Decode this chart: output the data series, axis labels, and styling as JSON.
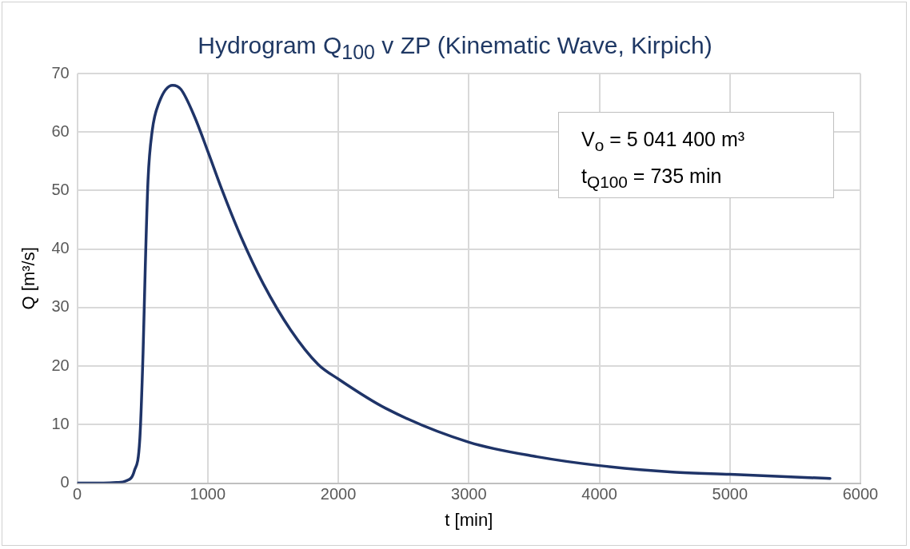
{
  "chart_data": {
    "type": "line",
    "title": "Hydrogram Q$_{100}$ v ZP (Kinematic Wave, Kirpich)",
    "xlabel": "t [min]",
    "ylabel": "Q [m³/s]",
    "annotations": [
      "V$_{o}$ = 5 041 400 m³",
      "t$_{Q100}$ = 735 min"
    ],
    "series": [
      {
        "color": "#1f3468",
        "x": [
          0,
          100,
          200,
          300,
          374,
          437,
          479,
          504,
          521,
          542,
          574,
          626,
          731,
          794,
          899,
          1000,
          1109,
          1256,
          1424,
          1634,
          1845,
          2000,
          2362,
          3000,
          3525,
          4000,
          4562,
          5000,
          5767
        ],
        "values": [
          0,
          0,
          0,
          0.1,
          0.4,
          2.1,
          7.5,
          22.3,
          37,
          51.8,
          60.2,
          65,
          68,
          67.3,
          62.6,
          56.7,
          50.1,
          42,
          34.1,
          26.2,
          20.3,
          17.8,
          12.8,
          7,
          4.5,
          3,
          1.9,
          1.5,
          0.8
        ]
      }
    ],
    "xlim": [
      0,
      6000
    ],
    "xticks": [
      0,
      1000,
      2000,
      3000,
      4000,
      5000,
      6000
    ],
    "ylim": [
      0,
      70
    ],
    "yticks": [
      0,
      10,
      20,
      30,
      40,
      50,
      60,
      70
    ],
    "grid": true,
    "legend": false,
    "marker": "none",
    "line_style": "solid"
  }
}
